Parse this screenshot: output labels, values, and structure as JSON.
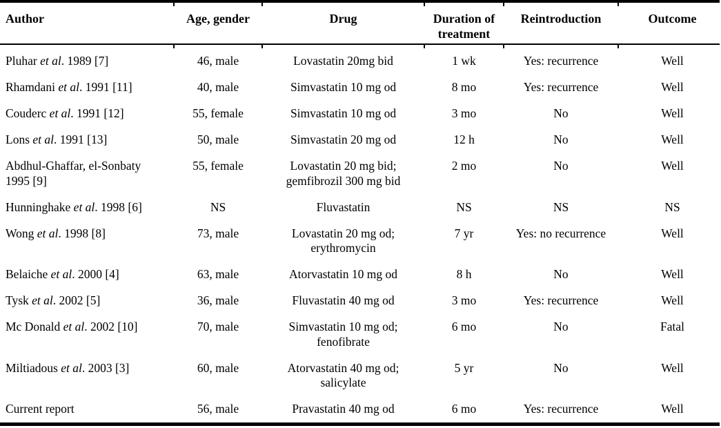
{
  "colors": {
    "text": "#000000",
    "background": "#ffffff",
    "rule": "#000000"
  },
  "table": {
    "columns": [
      {
        "label": "Author"
      },
      {
        "label": "Age, gender"
      },
      {
        "label": "Drug"
      },
      {
        "label": "Duration of\ntreatment"
      },
      {
        "label": "Reintroduction"
      },
      {
        "label": "Outcome"
      }
    ],
    "rows": [
      {
        "author": {
          "pre": "Pluhar ",
          "italic": "et al",
          "post": ". 1989 [7]"
        },
        "age_gender": "46, male",
        "drug": "Lovastatin 20mg bid",
        "duration": "1 wk",
        "reintroduction": "Yes: recurrence",
        "outcome": "Well"
      },
      {
        "author": {
          "pre": "Rhamdani ",
          "italic": "et al",
          "post": ". 1991 [11]"
        },
        "age_gender": "40, male",
        "drug": "Simvastatin 10 mg od",
        "duration": "8 mo",
        "reintroduction": "Yes: recurrence",
        "outcome": "Well"
      },
      {
        "author": {
          "pre": "Couderc ",
          "italic": "et al",
          "post": ". 1991 [12]"
        },
        "age_gender": "55, female",
        "drug": "Simvastatin 10 mg od",
        "duration": "3 mo",
        "reintroduction": "No",
        "outcome": "Well"
      },
      {
        "author": {
          "pre": "Lons ",
          "italic": "et al",
          "post": ". 1991 [13]"
        },
        "age_gender": "50, male",
        "drug": "Simvastatin 20 mg od",
        "duration": "12 h",
        "reintroduction": "No",
        "outcome": "Well"
      },
      {
        "author": {
          "pre": "Abdhul-Ghaffar, el-Sonbaty\n1995 [9]",
          "italic": "",
          "post": ""
        },
        "age_gender": "55, female",
        "drug": "Lovastatin 20 mg bid;\ngemfibrozil 300 mg bid",
        "duration": "2 mo",
        "reintroduction": "No",
        "outcome": "Well"
      },
      {
        "author": {
          "pre": "Hunninghake ",
          "italic": "et al",
          "post": ". 1998 [6]"
        },
        "age_gender": "NS",
        "drug": "Fluvastatin",
        "duration": "NS",
        "reintroduction": "NS",
        "outcome": "NS"
      },
      {
        "author": {
          "pre": "Wong ",
          "italic": "et al",
          "post": ". 1998 [8]"
        },
        "age_gender": "73, male",
        "drug": "Lovastatin 20 mg od;\nerythromycin",
        "duration": "7 yr",
        "reintroduction": "Yes: no recurrence",
        "outcome": "Well"
      },
      {
        "author": {
          "pre": "Belaiche ",
          "italic": "et al",
          "post": ". 2000 [4]"
        },
        "age_gender": "63, male",
        "drug": "Atorvastatin 10 mg od",
        "duration": "8 h",
        "reintroduction": "No",
        "outcome": "Well"
      },
      {
        "author": {
          "pre": "Tysk ",
          "italic": "et al",
          "post": ". 2002 [5]"
        },
        "age_gender": "36, male",
        "drug": "Fluvastatin 40 mg od",
        "duration": "3 mo",
        "reintroduction": "Yes: recurrence",
        "outcome": "Well"
      },
      {
        "author": {
          "pre": "Mc Donald ",
          "italic": "et al",
          "post": ". 2002 [10]"
        },
        "age_gender": "70, male",
        "drug": "Simvastatin 10 mg od;\nfenofibrate",
        "duration": "6 mo",
        "reintroduction": "No",
        "outcome": "Fatal"
      },
      {
        "author": {
          "pre": "Miltiadous ",
          "italic": "et al",
          "post": ". 2003 [3]"
        },
        "age_gender": "60, male",
        "drug": "Atorvastatin 40 mg od;\nsalicylate",
        "duration": "5 yr",
        "reintroduction": "No",
        "outcome": "Well"
      },
      {
        "author": {
          "pre": "Current report",
          "italic": "",
          "post": ""
        },
        "age_gender": "56, male",
        "drug": "Pravastatin 40 mg od",
        "duration": "6 mo",
        "reintroduction": "Yes: recurrence",
        "outcome": "Well"
      }
    ]
  }
}
